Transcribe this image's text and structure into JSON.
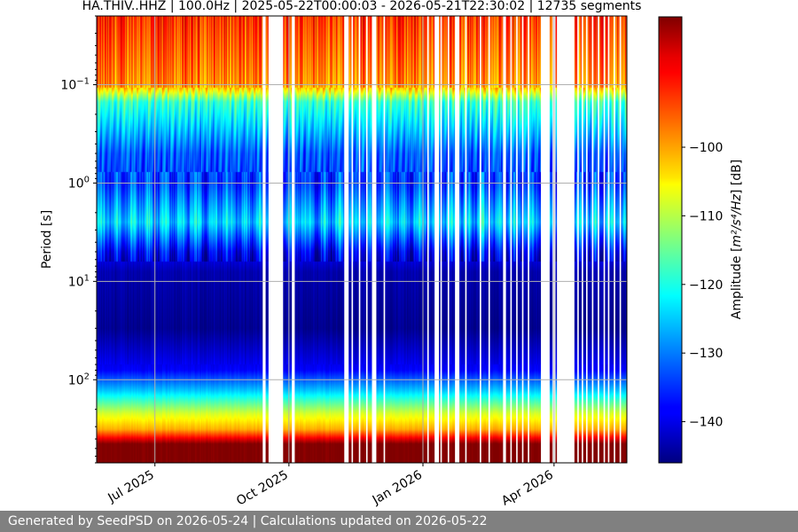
{
  "footer": {
    "text": "Generated by SeedPSD on 2026-05-24 | Calculations updated on 2026-05-22"
  },
  "chart_data": {
    "type": "heatmap",
    "title": "HA.THIV..HHZ | 100.0Hz | 2025-05-22T00:00:03 - 2026-05-21T22:30:02 | 12735 segments",
    "xlabel": "",
    "ylabel": "Period [s]",
    "x_range": [
      "2025-05-22",
      "2026-05-21"
    ],
    "y_range_period_s": [
      0.02,
      700
    ],
    "y_scale": "log",
    "x_ticks": [
      {
        "date": "2025-07-01",
        "label": "Jul 2025"
      },
      {
        "date": "2025-10-01",
        "label": "Oct 2025"
      },
      {
        "date": "2026-01-01",
        "label": "Jan 2026"
      },
      {
        "date": "2026-04-01",
        "label": "Apr 2026"
      }
    ],
    "y_ticks": [
      {
        "value": 0.1,
        "base": "10",
        "exp": "−1"
      },
      {
        "value": 1,
        "base": "10",
        "exp": "0"
      },
      {
        "value": 10,
        "base": "10",
        "exp": "1"
      },
      {
        "value": 100,
        "base": "10",
        "exp": "2"
      }
    ],
    "grid": true,
    "colormap": "jet",
    "colorbar": {
      "label_main": "Amplitude [",
      "label_math": "m²/s⁴/Hz",
      "label_end": "] [dB]",
      "range": [
        -146,
        -81
      ],
      "ticks": [
        -100,
        -110,
        -120,
        -130,
        -140
      ],
      "tick_labels": [
        "−100",
        "−110",
        "−120",
        "−130",
        "−140"
      ]
    },
    "amplitude_profile_by_period": [
      {
        "period": 0.02,
        "db": -92
      },
      {
        "period": 0.1,
        "db": -98
      },
      {
        "period": 0.15,
        "db": -118
      },
      {
        "period": 0.5,
        "db": -132
      },
      {
        "period": 1.0,
        "db": -134
      },
      {
        "period": 2.5,
        "db": -124
      },
      {
        "period": 5.0,
        "db": -138
      },
      {
        "period": 8.0,
        "db": -143
      },
      {
        "period": 30,
        "db": -145
      },
      {
        "period": 80,
        "db": -138
      },
      {
        "period": 130,
        "db": -125
      },
      {
        "period": 220,
        "db": -108
      },
      {
        "period": 320,
        "db": -100
      },
      {
        "period": 450,
        "db": -81
      },
      {
        "period": 700,
        "db": -81
      }
    ],
    "data_gaps": [
      [
        "2025-09-13",
        "2025-09-15"
      ],
      [
        "2025-09-17",
        "2025-09-27"
      ],
      [
        "2025-10-03",
        "2025-10-05"
      ],
      [
        "2025-11-08",
        "2025-11-11"
      ],
      [
        "2025-11-13",
        "2025-11-14"
      ],
      [
        "2025-11-18",
        "2025-11-19"
      ],
      [
        "2025-11-23",
        "2025-11-24"
      ],
      [
        "2025-11-27",
        "2025-11-30"
      ],
      [
        "2025-12-05",
        "2025-12-06"
      ],
      [
        "2026-01-04",
        "2026-01-05"
      ],
      [
        "2026-01-09",
        "2026-01-12"
      ],
      [
        "2026-01-13",
        "2026-01-14"
      ],
      [
        "2026-01-18",
        "2026-01-19"
      ],
      [
        "2026-01-23",
        "2026-01-26"
      ],
      [
        "2026-01-30",
        "2026-01-31"
      ],
      [
        "2026-02-09",
        "2026-02-10"
      ],
      [
        "2026-02-15",
        "2026-02-16"
      ],
      [
        "2026-02-25",
        "2026-02-27"
      ],
      [
        "2026-03-02",
        "2026-03-03"
      ],
      [
        "2026-03-06",
        "2026-03-07"
      ],
      [
        "2026-03-10",
        "2026-03-11"
      ],
      [
        "2026-03-14",
        "2026-03-15"
      ],
      [
        "2026-03-23",
        "2026-03-29"
      ],
      [
        "2026-03-31",
        "2026-04-02"
      ],
      [
        "2026-04-03",
        "2026-04-15"
      ],
      [
        "2026-04-17",
        "2026-04-18"
      ],
      [
        "2026-04-20",
        "2026-04-21"
      ],
      [
        "2026-04-23",
        "2026-04-24"
      ],
      [
        "2026-04-27",
        "2026-04-28"
      ],
      [
        "2026-05-01",
        "2026-05-02"
      ],
      [
        "2026-05-05",
        "2026-05-06"
      ],
      [
        "2026-05-08",
        "2026-05-09"
      ],
      [
        "2026-05-12",
        "2026-05-13"
      ],
      [
        "2026-05-16",
        "2026-05-17"
      ]
    ]
  }
}
